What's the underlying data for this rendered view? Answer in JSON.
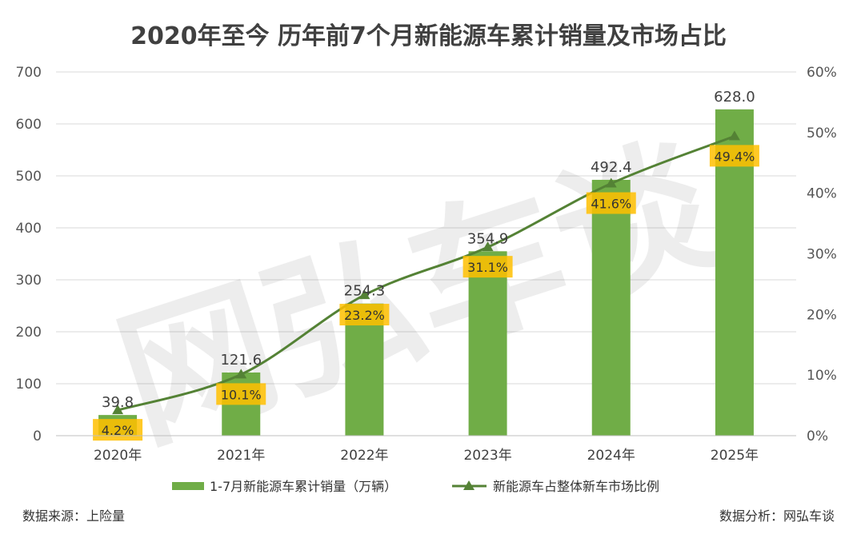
{
  "title": "2020年至今 历年前7个月新能源车累计销量及市场占比",
  "footer": {
    "source": "数据来源：上险量",
    "analysis": "数据分析：网弘车谈"
  },
  "watermark": "网弘车谈",
  "colors": {
    "bar": "#70ad47",
    "line": "#548235",
    "label_box": "#ffc000",
    "grid": "#d9d9d9"
  },
  "chart_data": {
    "type": "bar",
    "categories": [
      "2020年",
      "2021年",
      "2022年",
      "2023年",
      "2024年",
      "2025年"
    ],
    "series": [
      {
        "name": "1-7月新能源车累计销量（万辆）",
        "type": "bar",
        "axis": "left",
        "values": [
          39.8,
          121.6,
          254.3,
          354.9,
          492.4,
          628.0
        ],
        "labels": [
          "39.8",
          "121.6",
          "254.3",
          "354.9",
          "492.4",
          "628.0"
        ]
      },
      {
        "name": "新能源车占整体新车市场比例",
        "type": "line",
        "axis": "right",
        "values": [
          4.2,
          10.1,
          23.2,
          31.1,
          41.6,
          49.4
        ],
        "labels": [
          "4.2%",
          "10.1%",
          "23.2%",
          "31.1%",
          "41.6%",
          "49.4%"
        ]
      }
    ],
    "y_left": {
      "ylim": [
        0,
        700
      ],
      "ticks": [
        "0",
        "100",
        "200",
        "300",
        "400",
        "500",
        "600",
        "700"
      ]
    },
    "y_right": {
      "ylim": [
        0,
        60
      ],
      "ticks": [
        "0%",
        "10%",
        "20%",
        "30%",
        "40%",
        "50%",
        "60%"
      ]
    },
    "grid": true,
    "legend_position": "bottom"
  }
}
